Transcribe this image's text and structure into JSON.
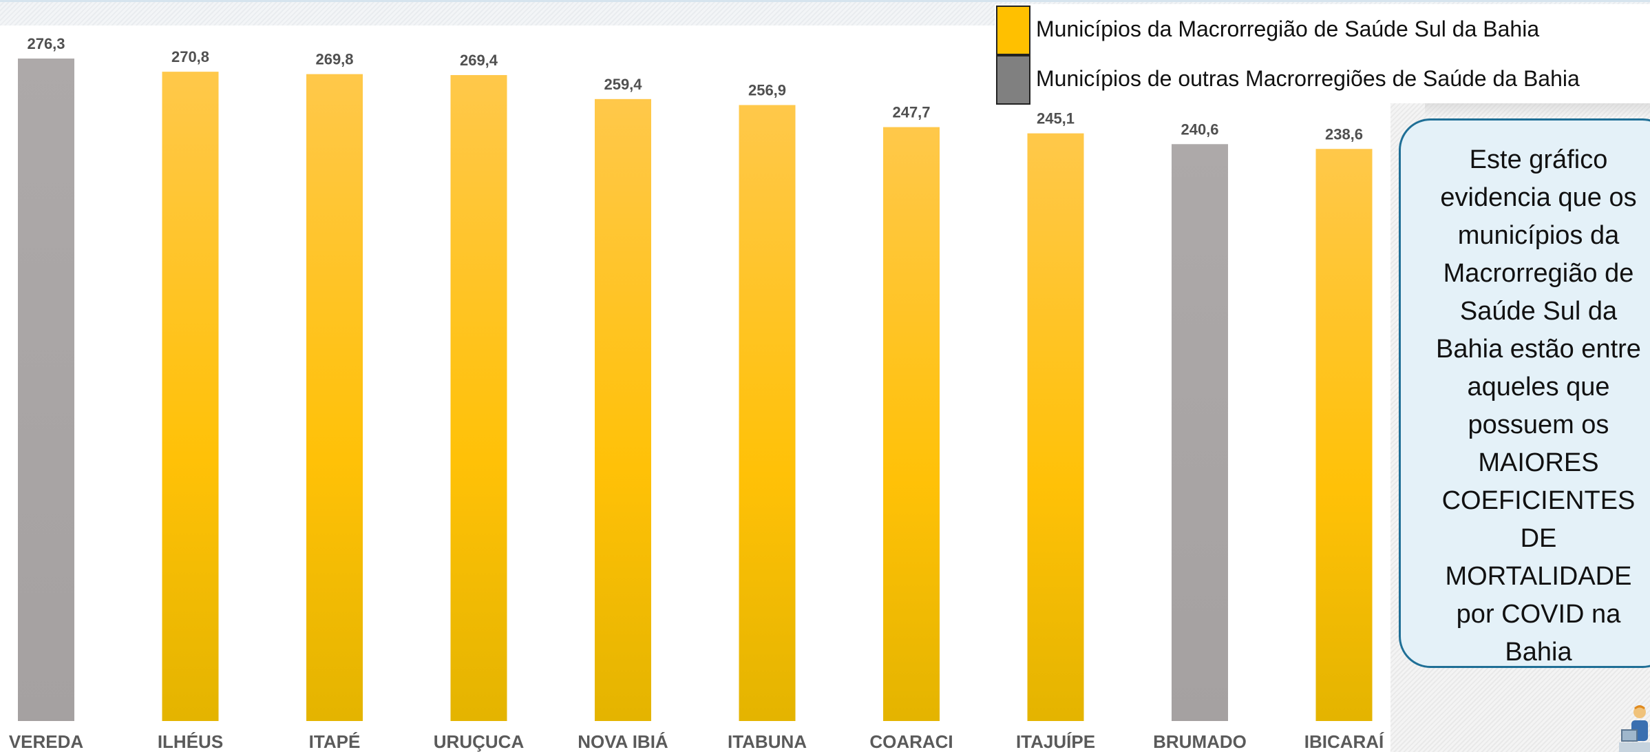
{
  "chart_data": {
    "type": "bar",
    "categories": [
      "VEREDA",
      "ILHÉUS",
      "ITAPÉ",
      "URUÇUCA",
      "NOVA IBIÁ",
      "ITABUNA",
      "COARACI",
      "ITAJUÍPE",
      "BRUMADO",
      "IBICARAÍ"
    ],
    "values": [
      276.3,
      270.8,
      269.8,
      269.4,
      259.4,
      256.9,
      247.7,
      245.1,
      240.6,
      238.6
    ],
    "value_labels": [
      "276,3",
      "270,8",
      "269,8",
      "269,4",
      "259,4",
      "256,9",
      "247,7",
      "245,1",
      "240,6",
      "238,6"
    ],
    "series_group": [
      "outras",
      "sul",
      "sul",
      "sul",
      "sul",
      "sul",
      "sul",
      "sul",
      "outras",
      "sul"
    ],
    "ylim": [
      0,
      276.3
    ],
    "grid": false,
    "legend_position": "top-right",
    "title": "",
    "xlabel": "",
    "ylabel": ""
  },
  "legend": {
    "items": [
      {
        "label": "Municípios da Macrorregião de Saúde Sul da Bahia",
        "color": "#FFC000"
      },
      {
        "label": "Municípios de outras Macrorregiões de Saúde da Bahia",
        "color": "#808080"
      }
    ]
  },
  "colors": {
    "sul_bar_top": "#FFC84A",
    "sul_bar_bottom": "#E4B400",
    "outras_bar": "#A9A5A5",
    "callout_bg": "#E4F1F8",
    "callout_border": "#1F6F96"
  },
  "callout": {
    "lines": [
      "Este gráfico",
      "evidencia que os",
      "municípios da",
      "Macrorregião de",
      "Saúde Sul da",
      "Bahia estão entre",
      "aqueles que",
      "possuem os",
      "MAIORES",
      "COEFICIENTES",
      "DE",
      "MORTALIDADE",
      "por COVID na",
      "Bahia"
    ]
  },
  "decor": {
    "person_icon": "person-at-desk-icon"
  }
}
